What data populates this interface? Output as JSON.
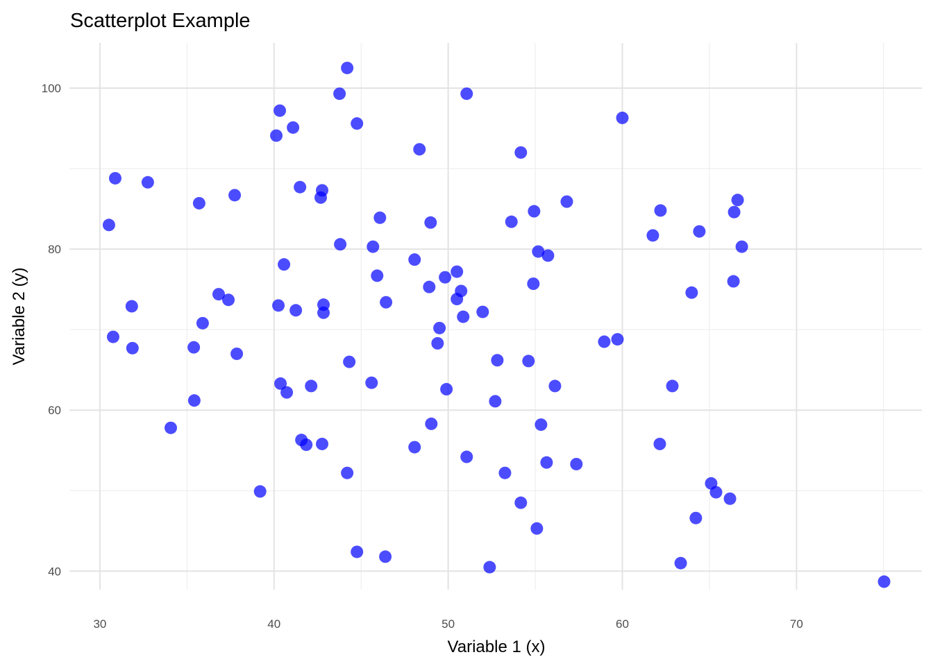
{
  "chart_data": {
    "type": "scatter",
    "title": "Scatterplot Example",
    "xlabel": "Variable 1 (x)",
    "ylabel": "Variable 2 (y)",
    "xlim": [
      28.25,
      77.2
    ],
    "ylim": [
      37.7,
      105.6
    ],
    "xticks": [
      30,
      40,
      50,
      60,
      70
    ],
    "yticks": [
      40,
      60,
      80,
      100
    ],
    "xtick_labels": [
      "30",
      "40",
      "50",
      "60",
      "70"
    ],
    "ytick_labels": [
      "40",
      "60",
      "80",
      "100"
    ],
    "grid": true,
    "point_color": "#0000FF",
    "point_alpha": 0.7,
    "points": [
      [
        44.2,
        102.5
      ],
      [
        43.76,
        99.3
      ],
      [
        51.06,
        99.3
      ],
      [
        40.33,
        97.2
      ],
      [
        60.0,
        96.3
      ],
      [
        44.76,
        95.6
      ],
      [
        41.09,
        95.1
      ],
      [
        40.13,
        94.1
      ],
      [
        48.35,
        92.4
      ],
      [
        54.17,
        92.0
      ],
      [
        30.88,
        88.8
      ],
      [
        32.75,
        88.3
      ],
      [
        41.49,
        87.7
      ],
      [
        42.76,
        87.3
      ],
      [
        42.68,
        86.4
      ],
      [
        37.74,
        86.7
      ],
      [
        35.7,
        85.7
      ],
      [
        56.81,
        85.9
      ],
      [
        66.62,
        86.1
      ],
      [
        54.93,
        84.7
      ],
      [
        62.19,
        84.8
      ],
      [
        66.42,
        84.6
      ],
      [
        46.08,
        83.9
      ],
      [
        48.99,
        83.3
      ],
      [
        53.63,
        83.4
      ],
      [
        30.52,
        83.0
      ],
      [
        64.42,
        82.2
      ],
      [
        61.75,
        81.7
      ],
      [
        43.8,
        80.6
      ],
      [
        45.68,
        80.3
      ],
      [
        66.86,
        80.3
      ],
      [
        55.17,
        79.7
      ],
      [
        55.73,
        79.2
      ],
      [
        48.07,
        78.7
      ],
      [
        40.57,
        78.1
      ],
      [
        50.5,
        77.2
      ],
      [
        49.82,
        76.5
      ],
      [
        45.92,
        76.7
      ],
      [
        66.38,
        76.0
      ],
      [
        54.89,
        75.7
      ],
      [
        48.91,
        75.3
      ],
      [
        50.74,
        74.8
      ],
      [
        63.98,
        74.6
      ],
      [
        36.82,
        74.4
      ],
      [
        37.38,
        73.7
      ],
      [
        50.5,
        73.8
      ],
      [
        46.43,
        73.4
      ],
      [
        42.84,
        73.1
      ],
      [
        31.83,
        72.9
      ],
      [
        40.25,
        73.0
      ],
      [
        41.25,
        72.4
      ],
      [
        42.84,
        72.1
      ],
      [
        51.98,
        72.2
      ],
      [
        50.86,
        71.6
      ],
      [
        35.9,
        70.8
      ],
      [
        49.5,
        70.2
      ],
      [
        30.76,
        69.1
      ],
      [
        58.96,
        68.5
      ],
      [
        59.72,
        68.8
      ],
      [
        49.39,
        68.3
      ],
      [
        35.39,
        67.8
      ],
      [
        31.87,
        67.7
      ],
      [
        37.86,
        67.0
      ],
      [
        44.32,
        66.0
      ],
      [
        52.82,
        66.2
      ],
      [
        54.61,
        66.1
      ],
      [
        45.6,
        63.4
      ],
      [
        40.37,
        63.3
      ],
      [
        42.13,
        63.0
      ],
      [
        56.13,
        63.0
      ],
      [
        62.87,
        63.0
      ],
      [
        49.9,
        62.6
      ],
      [
        40.73,
        62.2
      ],
      [
        35.42,
        61.2
      ],
      [
        52.7,
        61.1
      ],
      [
        49.03,
        58.3
      ],
      [
        55.33,
        58.2
      ],
      [
        34.07,
        57.8
      ],
      [
        41.57,
        56.3
      ],
      [
        41.85,
        55.7
      ],
      [
        42.76,
        55.8
      ],
      [
        62.15,
        55.8
      ],
      [
        48.07,
        55.4
      ],
      [
        51.06,
        54.2
      ],
      [
        55.65,
        53.5
      ],
      [
        57.36,
        53.3
      ],
      [
        44.2,
        52.2
      ],
      [
        53.26,
        52.2
      ],
      [
        65.1,
        50.9
      ],
      [
        65.38,
        49.8
      ],
      [
        39.2,
        49.9
      ],
      [
        66.18,
        49.0
      ],
      [
        54.17,
        48.5
      ],
      [
        64.22,
        46.6
      ],
      [
        55.09,
        45.3
      ],
      [
        44.76,
        42.4
      ],
      [
        46.39,
        41.8
      ],
      [
        52.38,
        40.5
      ],
      [
        63.35,
        41.0
      ],
      [
        75.03,
        38.7
      ]
    ]
  }
}
